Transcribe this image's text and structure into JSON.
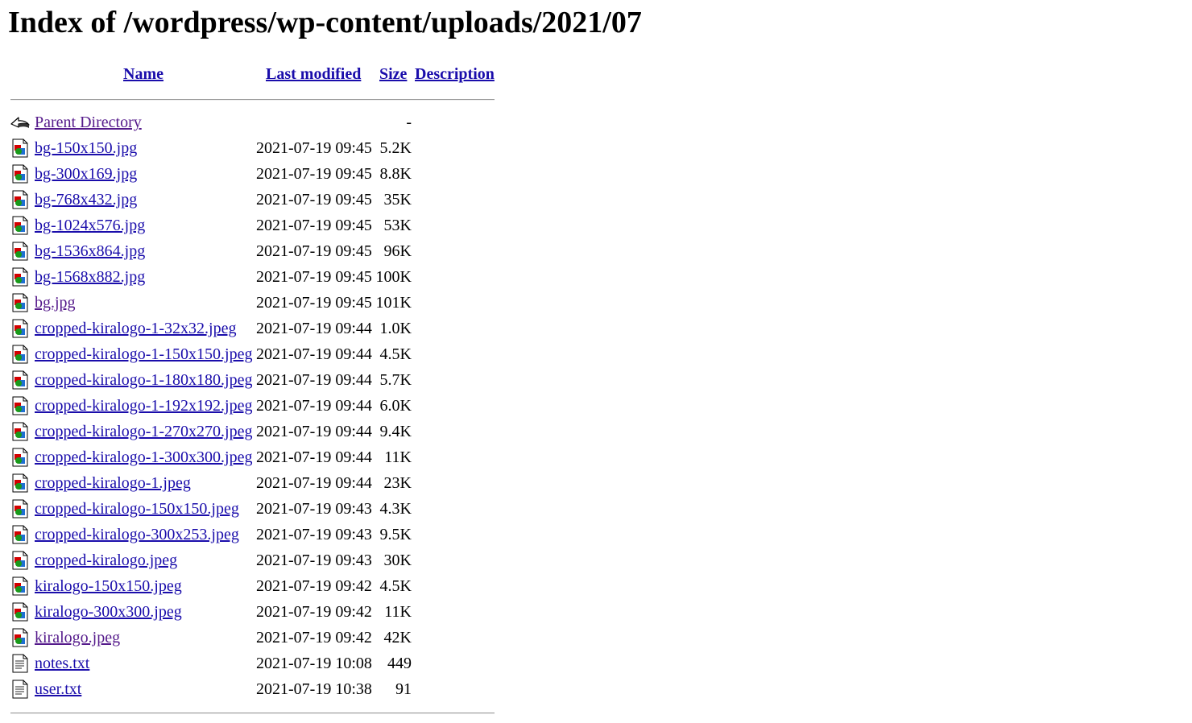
{
  "page": {
    "title": "Index of /wordpress/wp-content/uploads/2021/07"
  },
  "columns": {
    "name": "Name",
    "last_modified": "Last modified",
    "size": "Size",
    "description": "Description"
  },
  "colors": {
    "link": "#1a0dab",
    "visited_link": "#551a8b",
    "rule": "#9a9a9a"
  },
  "entries": [
    {
      "name": "Parent Directory",
      "modified": "",
      "size": "-",
      "icon": "back-icon"
    },
    {
      "name": "bg-150x150.jpg",
      "modified": "2021-07-19 09:45",
      "size": "5.2K",
      "icon": "image-icon"
    },
    {
      "name": "bg-300x169.jpg",
      "modified": "2021-07-19 09:45",
      "size": "8.8K",
      "icon": "image-icon"
    },
    {
      "name": "bg-768x432.jpg",
      "modified": "2021-07-19 09:45",
      "size": "35K",
      "icon": "image-icon"
    },
    {
      "name": "bg-1024x576.jpg",
      "modified": "2021-07-19 09:45",
      "size": "53K",
      "icon": "image-icon"
    },
    {
      "name": "bg-1536x864.jpg",
      "modified": "2021-07-19 09:45",
      "size": "96K",
      "icon": "image-icon"
    },
    {
      "name": "bg-1568x882.jpg",
      "modified": "2021-07-19 09:45",
      "size": "100K",
      "icon": "image-icon"
    },
    {
      "name": "bg.jpg",
      "modified": "2021-07-19 09:45",
      "size": "101K",
      "icon": "image-icon"
    },
    {
      "name": "cropped-kiralogo-1-32x32.jpeg",
      "modified": "2021-07-19 09:44",
      "size": "1.0K",
      "icon": "image-icon"
    },
    {
      "name": "cropped-kiralogo-1-150x150.jpeg",
      "modified": "2021-07-19 09:44",
      "size": "4.5K",
      "icon": "image-icon"
    },
    {
      "name": "cropped-kiralogo-1-180x180.jpeg",
      "modified": "2021-07-19 09:44",
      "size": "5.7K",
      "icon": "image-icon"
    },
    {
      "name": "cropped-kiralogo-1-192x192.jpeg",
      "modified": "2021-07-19 09:44",
      "size": "6.0K",
      "icon": "image-icon"
    },
    {
      "name": "cropped-kiralogo-1-270x270.jpeg",
      "modified": "2021-07-19 09:44",
      "size": "9.4K",
      "icon": "image-icon"
    },
    {
      "name": "cropped-kiralogo-1-300x300.jpeg",
      "modified": "2021-07-19 09:44",
      "size": "11K",
      "icon": "image-icon"
    },
    {
      "name": "cropped-kiralogo-1.jpeg",
      "modified": "2021-07-19 09:44",
      "size": "23K",
      "icon": "image-icon"
    },
    {
      "name": "cropped-kiralogo-150x150.jpeg",
      "modified": "2021-07-19 09:43",
      "size": "4.3K",
      "icon": "image-icon"
    },
    {
      "name": "cropped-kiralogo-300x253.jpeg",
      "modified": "2021-07-19 09:43",
      "size": "9.5K",
      "icon": "image-icon"
    },
    {
      "name": "cropped-kiralogo.jpeg",
      "modified": "2021-07-19 09:43",
      "size": "30K",
      "icon": "image-icon"
    },
    {
      "name": "kiralogo-150x150.jpeg",
      "modified": "2021-07-19 09:42",
      "size": "4.5K",
      "icon": "image-icon"
    },
    {
      "name": "kiralogo-300x300.jpeg",
      "modified": "2021-07-19 09:42",
      "size": "11K",
      "icon": "image-icon"
    },
    {
      "name": "kiralogo.jpeg",
      "modified": "2021-07-19 09:42",
      "size": "42K",
      "icon": "image-icon"
    },
    {
      "name": "notes.txt",
      "modified": "2021-07-19 10:08",
      "size": "449",
      "icon": "text-file-icon"
    },
    {
      "name": "user.txt",
      "modified": "2021-07-19 10:38",
      "size": "91",
      "icon": "text-file-icon"
    }
  ]
}
